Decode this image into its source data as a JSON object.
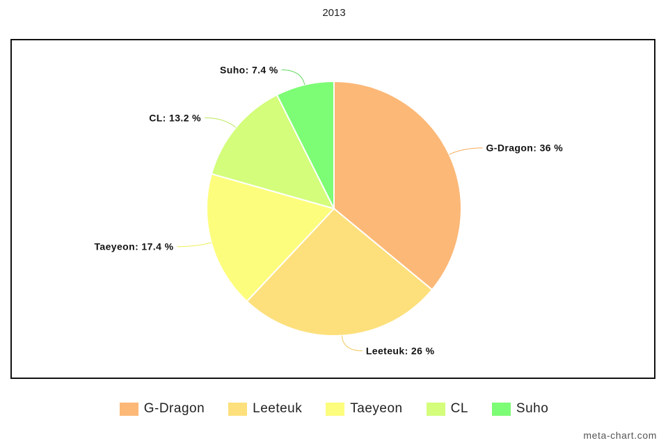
{
  "chart_data": {
    "type": "pie",
    "title": "2013",
    "categories": [
      "G-Dragon",
      "Leeteuk",
      "Taeyeon",
      "CL",
      "Suho"
    ],
    "values": [
      36,
      26,
      17.4,
      13.2,
      7.4
    ],
    "labels": [
      "G-Dragon: 36 %",
      "Leeteuk: 26 %",
      "Taeyeon: 17.4 %",
      "CL: 13.2 %",
      "Suho: 7.4 %"
    ],
    "colors": [
      "#fcb877",
      "#fde07c",
      "#fdfd7d",
      "#d3fd7a",
      "#7dfc75"
    ],
    "connector_colors": [
      "#f5a955",
      "#efc85a",
      "#efee5a",
      "#bde85a",
      "#5fd85a"
    ],
    "legend": "bottom-center"
  },
  "watermark": "meta-chart.com"
}
